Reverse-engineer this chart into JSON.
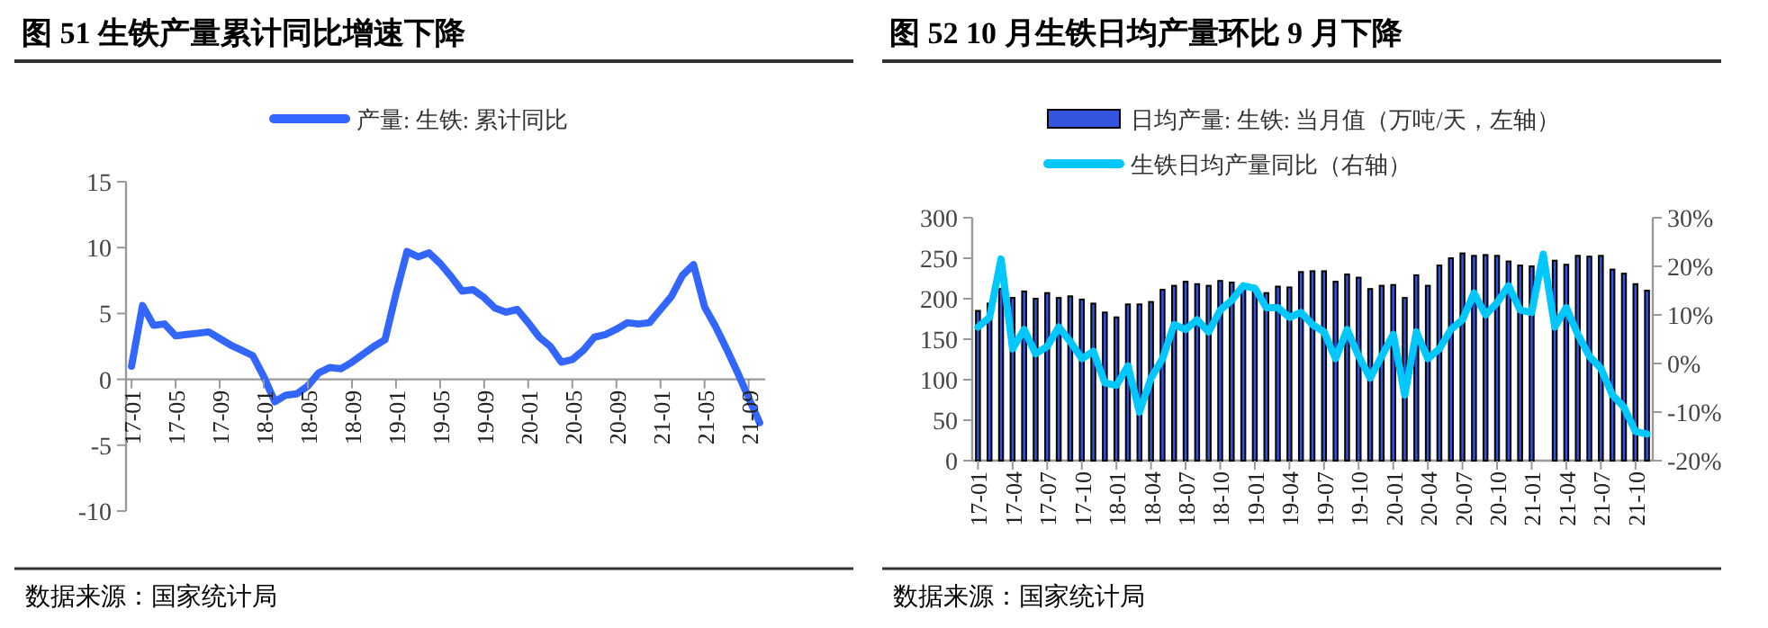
{
  "chart_data": [
    {
      "type": "line",
      "title": "图 51  生铁产量累计同比增速下降",
      "legend": "top",
      "grid": false,
      "ylim": [
        -10,
        15
      ],
      "yticks": [
        -10,
        -5,
        0,
        5,
        10,
        15
      ],
      "categories": [
        "17-01",
        null,
        null,
        null,
        "17-05",
        null,
        null,
        null,
        "17-09",
        null,
        null,
        null,
        "18-01",
        null,
        null,
        null,
        "18-05",
        null,
        null,
        null,
        "18-09",
        null,
        null,
        null,
        "19-01",
        null,
        null,
        null,
        "19-05",
        null,
        null,
        null,
        "19-09",
        null,
        null,
        null,
        "20-01",
        null,
        null,
        null,
        "20-05",
        null,
        null,
        null,
        "20-09",
        null,
        null,
        null,
        "21-01",
        null,
        null,
        null,
        "21-05",
        null,
        null,
        null,
        "21-09",
        null
      ],
      "series": [
        {
          "name": "产量: 生铁: 累计同比",
          "color": "#3366ff",
          "values": [
            1.0,
            5.6,
            4.1,
            4.2,
            3.3,
            3.4,
            3.5,
            3.6,
            3.1,
            2.6,
            2.2,
            1.8,
            0.2,
            -1.7,
            -1.2,
            -1.1,
            -0.5,
            0.5,
            0.9,
            0.8,
            1.3,
            1.9,
            2.5,
            3.0,
            6.5,
            9.7,
            9.3,
            9.6,
            8.8,
            7.8,
            6.7,
            6.8,
            6.2,
            5.4,
            5.1,
            5.3,
            4.3,
            3.2,
            2.5,
            1.3,
            1.5,
            2.2,
            3.2,
            3.4,
            3.8,
            4.3,
            4.2,
            4.3,
            5.3,
            6.3,
            7.9,
            8.7,
            5.5,
            4.0,
            2.3,
            0.5,
            -1.4,
            -3.3
          ]
        }
      ],
      "annotations": [
        "数据来源：国家统计局"
      ]
    },
    {
      "type": "bar",
      "title": "图 52 10 月生铁日均产量环比 9 月下降",
      "legend": "top",
      "grid": false,
      "ylim": [
        0,
        300
      ],
      "yticks": [
        0,
        50,
        100,
        150,
        200,
        250,
        300
      ],
      "y2lim": [
        -20,
        30
      ],
      "y2ticks": [
        {
          "value": -20,
          "label": "-20%"
        },
        {
          "value": -10,
          "label": "-10%"
        },
        {
          "value": 0,
          "label": "0%"
        },
        {
          "value": 10,
          "label": "10%"
        },
        {
          "value": 20,
          "label": "20%"
        },
        {
          "value": 30,
          "label": "30%"
        }
      ],
      "categories": [
        "17-01",
        null,
        null,
        "17-04",
        null,
        null,
        "17-07",
        null,
        null,
        "17-10",
        null,
        null,
        "18-01",
        null,
        null,
        "18-04",
        null,
        null,
        "18-07",
        null,
        null,
        "18-10",
        null,
        null,
        "19-01",
        null,
        null,
        "19-04",
        null,
        null,
        "19-07",
        null,
        null,
        "19-10",
        null,
        null,
        "20-01",
        null,
        null,
        "20-04",
        null,
        null,
        "20-07",
        null,
        null,
        "20-10",
        null,
        null,
        "21-01",
        null,
        null,
        "21-04",
        null,
        null,
        "21-07",
        null,
        null,
        "21-10",
        null
      ],
      "series": [
        {
          "name": "日均产量: 生铁: 当月值（万吨/天，左轴）",
          "color": "#3355dd",
          "values": [
            185,
            194,
            212,
            201,
            209,
            200,
            207,
            201,
            203,
            199,
            194,
            183,
            177,
            193,
            193,
            196,
            211,
            216,
            221,
            218,
            216,
            222,
            220,
            215,
            210,
            207,
            215,
            214,
            233,
            234,
            234,
            221,
            230,
            226,
            212,
            216,
            217,
            201,
            229,
            216,
            241,
            250,
            256,
            253,
            254,
            253,
            246,
            241,
            240,
            null,
            247,
            242,
            253,
            252,
            253,
            236,
            231,
            218,
            210
          ]
        },
        {
          "name": "生铁日均产量同比（右轴）",
          "type": "line",
          "axis": "y2",
          "color": "#00c8ff",
          "values": [
            7.5,
            9.5,
            21.5,
            3,
            7,
            2,
            3.5,
            7.5,
            4.5,
            1,
            2.5,
            -4,
            -4.5,
            -0.5,
            -10,
            -3,
            1,
            8,
            7,
            9,
            6.5,
            11,
            13,
            16,
            15.5,
            11.5,
            11.5,
            9.5,
            10.5,
            8,
            6.5,
            1,
            7,
            1.5,
            -3,
            1.5,
            6,
            -6.5,
            6.5,
            1,
            3,
            7,
            9,
            14.5,
            10,
            12.5,
            16,
            11,
            10.5,
            22.5,
            7.5,
            11.5,
            6,
            1.5,
            -1,
            -6.5,
            -9,
            -14,
            -14.5
          ]
        }
      ],
      "annotations": [
        "数据来源：国家统计局"
      ]
    }
  ]
}
